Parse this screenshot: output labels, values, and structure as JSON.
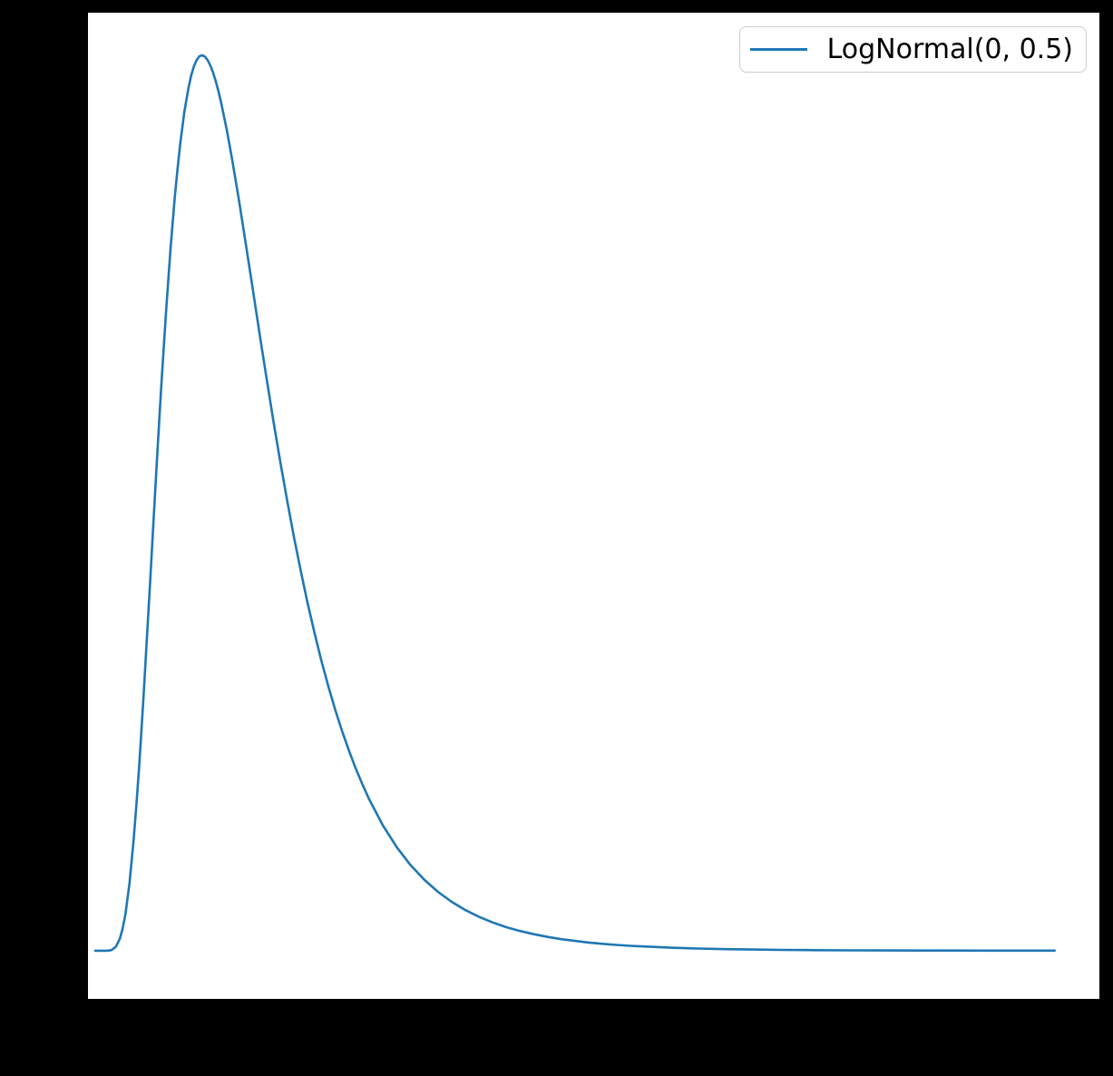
{
  "figure": {
    "background_color": "#000000",
    "plot_background_color": "#ffffff"
  },
  "legend": {
    "location": "upper right",
    "frame_color": "#cccccc",
    "background_color": "#ffffff",
    "text_color": "#000000"
  },
  "chart_data": {
    "type": "line",
    "title": "",
    "xlabel": "",
    "ylabel": "",
    "grid": false,
    "tick_labels_visible": false,
    "legend_position": "upper right",
    "axes": {
      "xlim": [
        -0.053,
        7.326
      ],
      "ylim": [
        -0.0486,
        0.9471
      ]
    },
    "series": [
      {
        "name": "LogNormal(0, 0.5)",
        "color": "#1f77b4",
        "linewidth": 2.6,
        "distribution": "lognormal",
        "mu": 0,
        "sigma": 0.5,
        "peak": {
          "x": 0.7788,
          "y": 0.904
        },
        "points": [
          [
            0.0,
            0.0
          ],
          [
            0.04,
            0.0
          ],
          [
            0.08,
            0.0
          ],
          [
            0.1,
            0.0002
          ],
          [
            0.12,
            0.0008
          ],
          [
            0.15,
            0.004
          ],
          [
            0.18,
            0.0124
          ],
          [
            0.2,
            0.0224
          ],
          [
            0.22,
            0.037
          ],
          [
            0.25,
            0.0684
          ],
          [
            0.28,
            0.1117
          ],
          [
            0.3,
            0.1465
          ],
          [
            0.32,
            0.1858
          ],
          [
            0.35,
            0.2514
          ],
          [
            0.38,
            0.3229
          ],
          [
            0.4,
            0.372
          ],
          [
            0.42,
            0.4218
          ],
          [
            0.45,
            0.4954
          ],
          [
            0.48,
            0.5658
          ],
          [
            0.5,
            0.6104
          ],
          [
            0.52,
            0.6524
          ],
          [
            0.55,
            0.7099
          ],
          [
            0.58,
            0.76
          ],
          [
            0.6,
            0.7891
          ],
          [
            0.62,
            0.8148
          ],
          [
            0.65,
            0.8469
          ],
          [
            0.68,
            0.8713
          ],
          [
            0.7,
            0.8838
          ],
          [
            0.72,
            0.8931
          ],
          [
            0.74,
            0.8994
          ],
          [
            0.76,
            0.9031
          ],
          [
            0.78,
            0.9041
          ],
          [
            0.8,
            0.9028
          ],
          [
            0.82,
            0.8993
          ],
          [
            0.84,
            0.8938
          ],
          [
            0.86,
            0.8865
          ],
          [
            0.88,
            0.8775
          ],
          [
            0.9,
            0.8671
          ],
          [
            0.92,
            0.8553
          ],
          [
            0.96,
            0.8284
          ],
          [
            1.0,
            0.7979
          ],
          [
            1.05,
            0.7563
          ],
          [
            1.1,
            0.7123
          ],
          [
            1.15,
            0.6672
          ],
          [
            1.2,
            0.6221
          ],
          [
            1.25,
            0.5778
          ],
          [
            1.3,
            0.5348
          ],
          [
            1.35,
            0.4936
          ],
          [
            1.4,
            0.4545
          ],
          [
            1.45,
            0.4175
          ],
          [
            1.5,
            0.3829
          ],
          [
            1.55,
            0.3506
          ],
          [
            1.6,
            0.3206
          ],
          [
            1.65,
            0.2928
          ],
          [
            1.7,
            0.2672
          ],
          [
            1.75,
            0.2437
          ],
          [
            1.8,
            0.2221
          ],
          [
            1.85,
            0.2023
          ],
          [
            1.9,
            0.1842
          ],
          [
            1.95,
            0.1677
          ],
          [
            2.0,
            0.1526
          ],
          [
            2.1,
            0.1263
          ],
          [
            2.2,
            0.1046
          ],
          [
            2.3,
            0.0866
          ],
          [
            2.4,
            0.0718
          ],
          [
            2.5,
            0.0595
          ],
          [
            2.6,
            0.0494
          ],
          [
            2.7,
            0.0411
          ],
          [
            2.8,
            0.0342
          ],
          [
            2.9,
            0.0285
          ],
          [
            3.0,
            0.0238
          ],
          [
            3.1,
            0.0199
          ],
          [
            3.2,
            0.0167
          ],
          [
            3.3,
            0.014
          ],
          [
            3.4,
            0.0117
          ],
          [
            3.5,
            0.0099
          ],
          [
            3.6,
            0.0083
          ],
          [
            3.7,
            0.007
          ],
          [
            3.8,
            0.0059
          ],
          [
            3.9,
            0.005
          ],
          [
            4.0,
            0.0043
          ],
          [
            4.2,
            0.0031
          ],
          [
            4.4,
            0.0022
          ],
          [
            4.6,
            0.0016
          ],
          [
            4.8,
            0.0012
          ],
          [
            5.0,
            0.0009
          ],
          [
            5.25,
            0.0006
          ],
          [
            5.5,
            0.0004
          ],
          [
            5.75,
            0.0003
          ],
          [
            6.0,
            0.0002
          ],
          [
            6.25,
            0.0002
          ],
          [
            6.5,
            0.0001
          ],
          [
            6.75,
            0.0001
          ],
          [
            7.0,
            0.0001
          ]
        ]
      }
    ]
  }
}
